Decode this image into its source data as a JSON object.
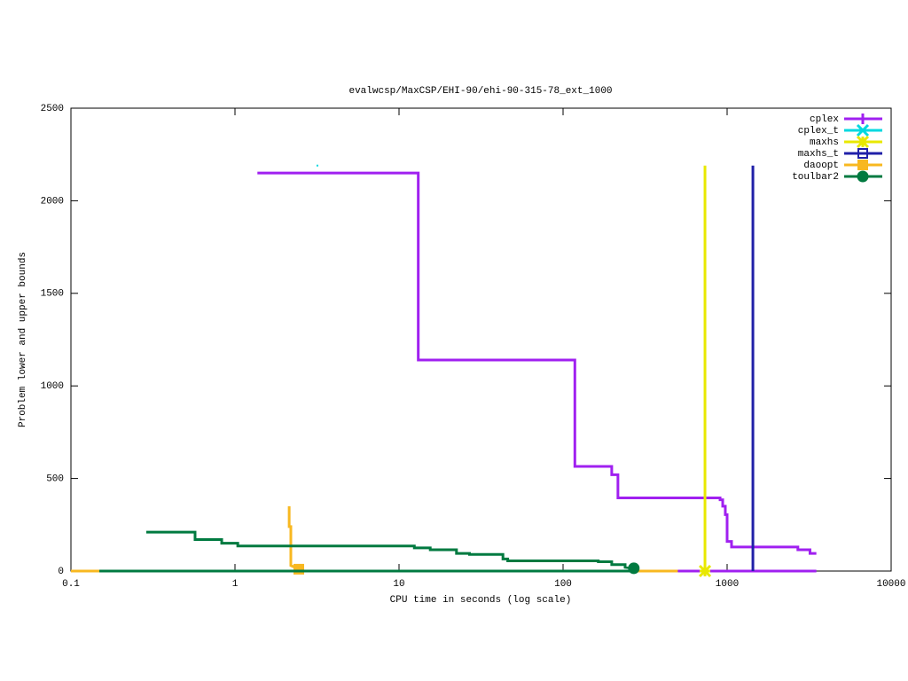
{
  "chart_data": {
    "type": "line",
    "title": "evalwcsp/MaxCSP/EHI-90/ehi-90-315-78_ext_1000",
    "x_label": "CPU time in seconds (log scale)",
    "y_label": "Problem lower and upper bounds",
    "x_log": true,
    "xlim": [
      0.1,
      10000
    ],
    "xticks": [
      0.1,
      1,
      10,
      100,
      1000,
      10000
    ],
    "ylim": [
      0,
      2500
    ],
    "yticks": [
      0,
      500,
      1000,
      1500,
      2000,
      2500
    ],
    "legend": "top-right",
    "series": [
      {
        "name": "cplex",
        "color": "#a020f0",
        "point": "plus",
        "end_marker": false,
        "x": [
          1.37,
          13.1,
          13.1,
          118,
          118,
          198,
          198,
          216,
          216,
          906,
          906,
          940,
          940,
          975,
          975,
          1000,
          1000,
          1064,
          1064,
          2700,
          2700,
          3200,
          3200,
          3500,
          null,
          500,
          3500
        ],
        "values": [
          2150,
          2150,
          1140,
          1140,
          565,
          565,
          520,
          520,
          395,
          395,
          385,
          385,
          350,
          350,
          305,
          305,
          160,
          160,
          130,
          130,
          115,
          115,
          95,
          95,
          null,
          0,
          0
        ]
      },
      {
        "name": "cplex_t",
        "color": "#00d8e0",
        "point": "cross",
        "end_marker": false,
        "x": [
          3.18
        ],
        "values": [
          2190
        ]
      },
      {
        "name": "maxhs",
        "color": "#e8e800",
        "point": "star",
        "end_marker": true,
        "x": [
          733,
          733
        ],
        "values": [
          2190,
          0
        ]
      },
      {
        "name": "maxhs_t",
        "color": "#2020a8",
        "point": "box",
        "end_marker": false,
        "x": [
          1436,
          1436
        ],
        "values": [
          2190,
          0
        ]
      },
      {
        "name": "daoopt",
        "color": "#f8b820",
        "point": "filled-box",
        "end_marker": true,
        "x": [
          0.1,
          0.149,
          null,
          270,
          500,
          null,
          2.14,
          2.14,
          2.19,
          2.19,
          2.45
        ],
        "values": [
          0,
          0,
          null,
          0,
          0,
          null,
          350,
          240,
          240,
          30,
          10
        ]
      },
      {
        "name": "toulbar2",
        "color": "#007a40",
        "point": "circle",
        "end_marker": true,
        "x": [
          0.149,
          270,
          null,
          0.288,
          0.571,
          0.571,
          0.83,
          0.83,
          1.04,
          1.04,
          12.4,
          12.4,
          15.5,
          15.5,
          22.4,
          22.4,
          26.9,
          26.9,
          43,
          43,
          46,
          46,
          164,
          164,
          198,
          198,
          239,
          239,
          270
        ],
        "values": [
          0,
          0,
          null,
          210,
          210,
          170,
          170,
          150,
          150,
          135,
          135,
          125,
          125,
          115,
          115,
          95,
          95,
          90,
          90,
          65,
          65,
          55,
          55,
          50,
          50,
          35,
          35,
          20,
          15
        ]
      }
    ]
  }
}
